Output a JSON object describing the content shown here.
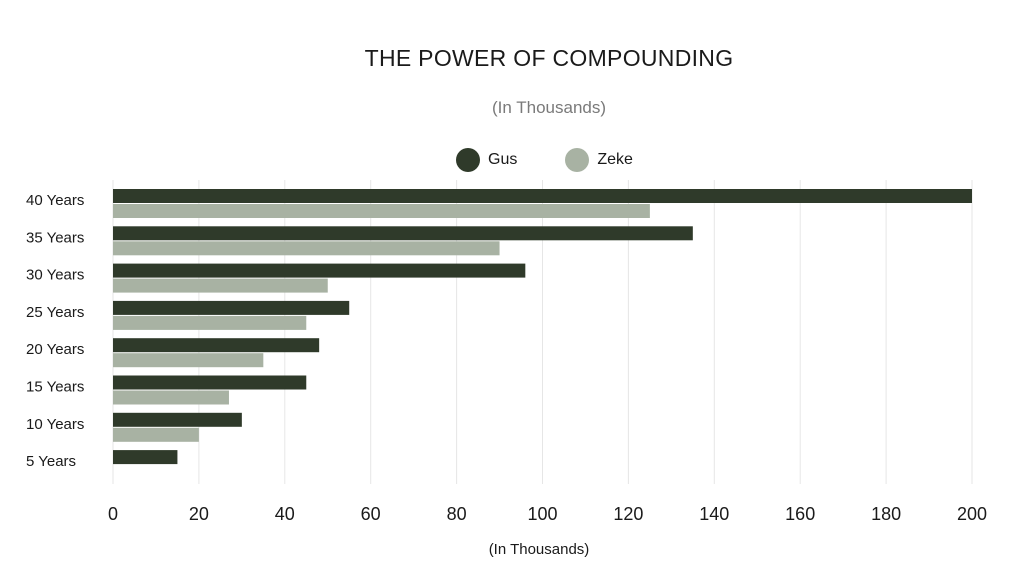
{
  "chart_data": {
    "type": "bar",
    "orientation": "horizontal",
    "title": "THE POWER OF COMPOUNDING",
    "subtitle": "(In Thousands)",
    "xlabel": "(In Thousands)",
    "ylabel": "",
    "xlim": [
      0,
      200
    ],
    "xticks": [
      0,
      20,
      40,
      60,
      80,
      100,
      120,
      140,
      160,
      180,
      200
    ],
    "grid": true,
    "legend_position": "top-center",
    "categories": [
      "40 Years",
      "35 Years",
      "30 Years",
      "25 Years",
      "20 Years",
      "15 Years",
      "10 Years",
      "5 Years"
    ],
    "series": [
      {
        "name": "Gus",
        "color": "#2f3a2a",
        "values": [
          200,
          135,
          96,
          55,
          48,
          45,
          30,
          15
        ]
      },
      {
        "name": "Zeke",
        "color": "#a8b2a3",
        "values": [
          125,
          90,
          50,
          45,
          35,
          27,
          20,
          0
        ]
      }
    ]
  }
}
